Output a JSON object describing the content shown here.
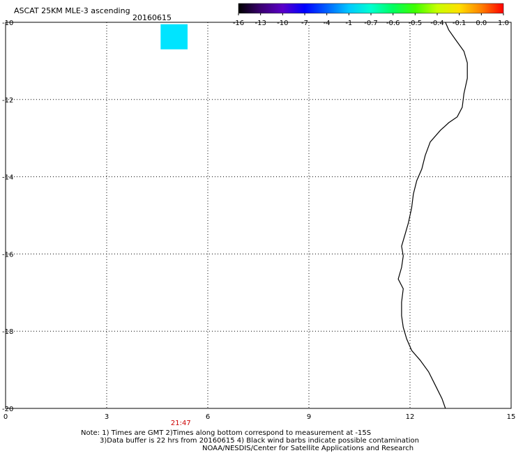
{
  "header": {
    "title": "ASCAT 25KM MLE-3 ascending",
    "date": "20160615"
  },
  "colorbar": {
    "labels": [
      "-16",
      "-13",
      "-10",
      "-7",
      "-4",
      "-1",
      "-0.7",
      "-0.6",
      "-0.5",
      "-0.4",
      "-0.1",
      "0.0",
      "1.0"
    ],
    "colors": [
      "#000000",
      "#3a0070",
      "#5a00c8",
      "#0000ff",
      "#0060ff",
      "#00c8ff",
      "#00ffd0",
      "#00ff60",
      "#40ff00",
      "#c8ff00",
      "#ffe000",
      "#ff8000",
      "#ff0000"
    ]
  },
  "map": {
    "lon_range": [
      0,
      15
    ],
    "lat_range": [
      -10,
      -20
    ],
    "x_ticks": [
      "0",
      "3",
      "6",
      "9",
      "12",
      "15"
    ],
    "y_ticks": [
      "-10",
      "-12",
      "-14",
      "-16",
      "-18",
      "-20"
    ],
    "data_cell": {
      "color": "#00e4ff",
      "lon_min": 4.6,
      "lon_max": 5.4,
      "lat_min": -10.7,
      "lat_max": -10.05
    },
    "time_label": "21:47",
    "time_lon": 5.2,
    "coastline": [
      [
        13.05,
        -10.0
      ],
      [
        13.15,
        -10.2
      ],
      [
        13.35,
        -10.45
      ],
      [
        13.6,
        -10.75
      ],
      [
        13.7,
        -11.05
      ],
      [
        13.7,
        -11.45
      ],
      [
        13.6,
        -11.85
      ],
      [
        13.55,
        -12.2
      ],
      [
        13.4,
        -12.45
      ],
      [
        13.15,
        -12.6
      ],
      [
        12.9,
        -12.8
      ],
      [
        12.6,
        -13.1
      ],
      [
        12.45,
        -13.45
      ],
      [
        12.35,
        -13.8
      ],
      [
        12.2,
        -14.1
      ],
      [
        12.1,
        -14.45
      ],
      [
        12.05,
        -14.8
      ],
      [
        11.95,
        -15.2
      ],
      [
        11.85,
        -15.5
      ],
      [
        11.75,
        -15.8
      ],
      [
        11.8,
        -16.05
      ],
      [
        11.75,
        -16.35
      ],
      [
        11.65,
        -16.65
      ],
      [
        11.8,
        -16.9
      ],
      [
        11.75,
        -17.25
      ],
      [
        11.75,
        -17.6
      ],
      [
        11.8,
        -17.9
      ],
      [
        11.9,
        -18.2
      ],
      [
        12.05,
        -18.5
      ],
      [
        12.3,
        -18.75
      ],
      [
        12.55,
        -19.05
      ],
      [
        12.75,
        -19.4
      ],
      [
        12.95,
        -19.75
      ],
      [
        13.05,
        -20.0
      ]
    ]
  },
  "notes": {
    "line1": "Note: 1) Times are GMT 2)Times along bottom correspond to measurement at -15S",
    "line2": "3)Data buffer is 22 hrs from 20160615 4) Black wind barbs indicate possible contamination",
    "line3": "NOAA/NESDIS/Center for Satellite Applications and Research"
  }
}
